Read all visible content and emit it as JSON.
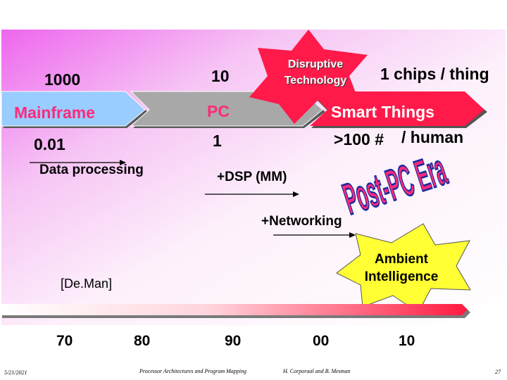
{
  "top": {
    "left_value": "1000",
    "mid_value": "10",
    "right_value": "1 chips / thing"
  },
  "eras": {
    "mainframe": "Mainframe",
    "pc": "PC",
    "smart": "Smart Things"
  },
  "burst_disruptive": {
    "line1": "Disruptive",
    "line2": "Technology"
  },
  "bottom_values": {
    "left_value": "0.01",
    "mid_value": "1",
    "right_prefix": ">100 #",
    "right_suffix": "/ human"
  },
  "phases": {
    "data_processing": "Data processing",
    "dsp": "+DSP (MM)",
    "networking": "+Networking"
  },
  "post_pc": "Post-PC Era",
  "burst_ambient": {
    "line1": "Ambient",
    "line2": "Intelligence"
  },
  "citation": "[De.Man]",
  "timeline": {
    "ticks": [
      "70",
      "80",
      "90",
      "00",
      "10"
    ]
  },
  "footer": {
    "date": "5/21/2021",
    "course": "Processor Architectures and Program Mapping",
    "authors": "H. Corporaal and B. Mesman",
    "page": "27"
  },
  "colors": {
    "mainframe_arrow": "#99ccff",
    "pc_arrow": "#a8a8a8",
    "smart_arrow": "#ff1a4a",
    "disruptive_burst": "#ff1a4a",
    "ambient_burst": "#ffff33",
    "post_pc_fill": "#ff2a7a",
    "post_pc_outline": "#1a2aa0"
  }
}
